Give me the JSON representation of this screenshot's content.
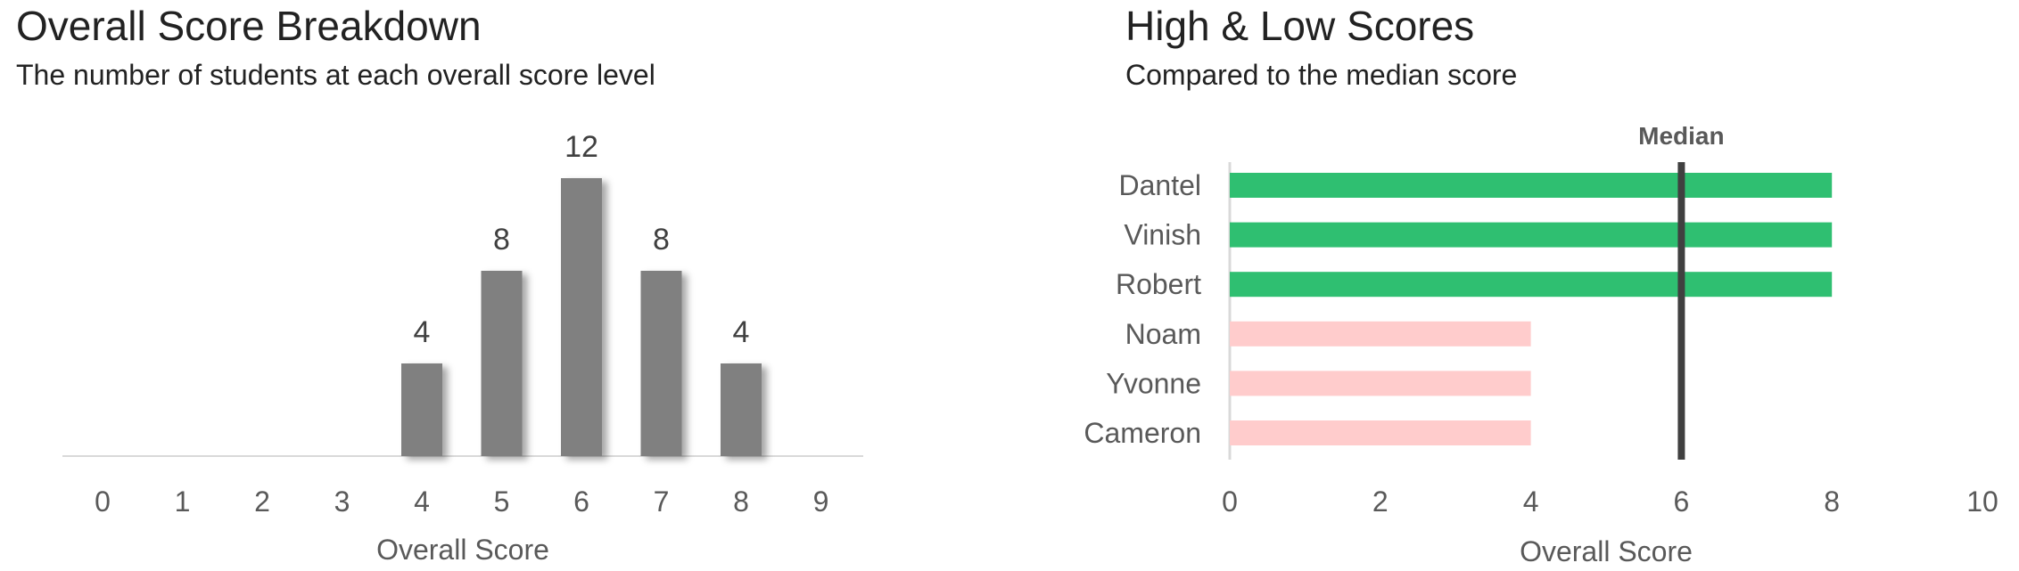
{
  "chart_data": [
    {
      "type": "bar",
      "title": "Overall Score Breakdown",
      "subtitle": "The number of students at each overall score level",
      "xlabel": "Overall Score",
      "ylabel": "",
      "categories": [
        "0",
        "1",
        "2",
        "3",
        "4",
        "5",
        "6",
        "7",
        "8",
        "9"
      ],
      "values": [
        0,
        0,
        0,
        0,
        4,
        8,
        12,
        8,
        4,
        0
      ],
      "ylim": [
        0,
        12
      ],
      "grid": false,
      "color": "#808080"
    },
    {
      "type": "bar",
      "orientation": "horizontal",
      "title": "High & Low Scores",
      "subtitle": "Compared to the median score",
      "xlabel": "Overall Score",
      "categories": [
        "Dantel",
        "Vinish",
        "Robert",
        "Noam",
        "Yvonne",
        "Cameron"
      ],
      "values": [
        8,
        8,
        8,
        4,
        4,
        4
      ],
      "xlim": [
        0,
        10
      ],
      "xticks": [
        0,
        2,
        4,
        6,
        8,
        10
      ],
      "median": 6,
      "median_label": "Median",
      "high_color": "#2fbf71",
      "low_color": "#ffcccc",
      "median_color": "#404040",
      "grid": false
    }
  ]
}
